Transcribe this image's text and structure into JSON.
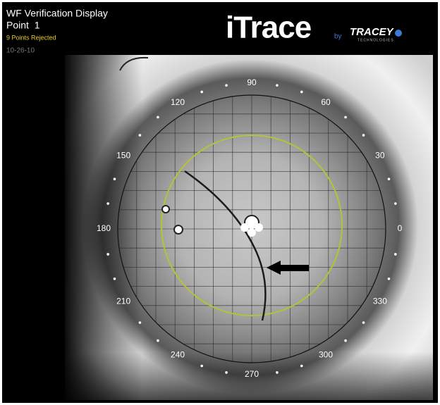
{
  "header": {
    "title": "WF Verification Display",
    "point": "Point  1",
    "status": "9 Points Rejected",
    "date": "10-26-10"
  },
  "logo": {
    "brand": "iTrace",
    "by": "by",
    "company": "TRACEY",
    "company_sub": "TECHNOLOGIES"
  },
  "overlay": {
    "angle_labels": [
      "90",
      "60",
      "30",
      "0",
      "330",
      "300",
      "270",
      "240",
      "210",
      "180",
      "150",
      "120"
    ]
  }
}
